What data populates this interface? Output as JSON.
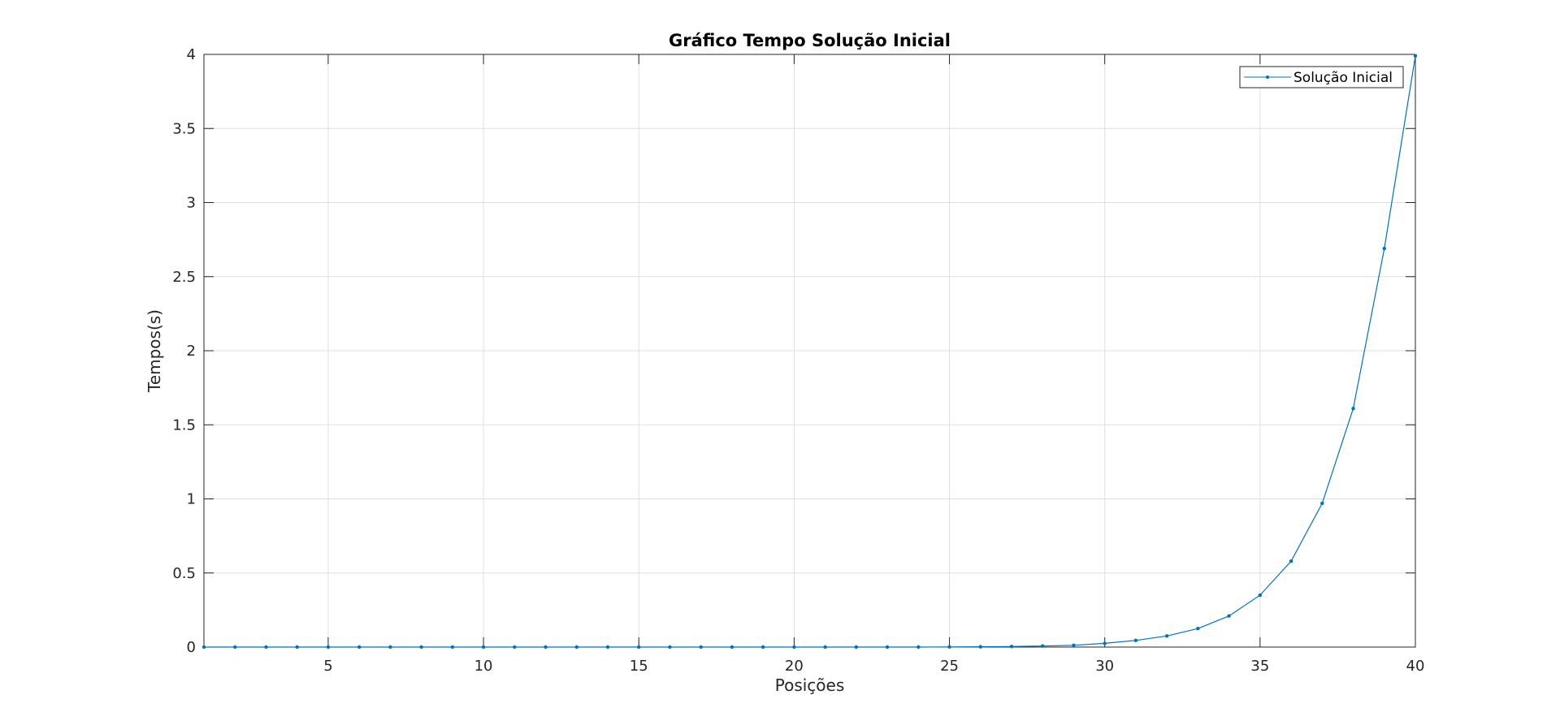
{
  "chart_data": {
    "type": "line",
    "title": "Gráfico Tempo Solução Inicial",
    "xlabel": "Posições",
    "ylabel": "Tempos(s)",
    "xlim": [
      1,
      40
    ],
    "ylim": [
      0,
      4
    ],
    "xticks": [
      5,
      10,
      15,
      20,
      25,
      30,
      35,
      40
    ],
    "xtick_labels": [
      "5",
      "10",
      "15",
      "20",
      "25",
      "30",
      "35",
      "40"
    ],
    "yticks": [
      0,
      0.5,
      1,
      1.5,
      2,
      2.5,
      3,
      3.5,
      4
    ],
    "ytick_labels": [
      "0",
      "0.5",
      "1",
      "1.5",
      "2",
      "2.5",
      "3",
      "3.5",
      "4"
    ],
    "grid": true,
    "legend_position": "top-right",
    "series": [
      {
        "name": "Solução Inicial",
        "color": "#0072BD",
        "marker": "point",
        "x": [
          1,
          2,
          3,
          4,
          5,
          6,
          7,
          8,
          9,
          10,
          11,
          12,
          13,
          14,
          15,
          16,
          17,
          18,
          19,
          20,
          21,
          22,
          23,
          24,
          25,
          26,
          27,
          28,
          29,
          30,
          31,
          32,
          33,
          34,
          35,
          36,
          37,
          38,
          39,
          40
        ],
        "y": [
          0,
          0,
          0,
          0,
          0,
          0,
          0,
          0,
          0,
          0,
          0,
          0,
          0,
          0,
          0,
          0,
          0,
          0,
          0,
          0,
          0,
          0,
          0,
          0,
          0.001,
          0.002,
          0.004,
          0.007,
          0.012,
          0.025,
          0.045,
          0.075,
          0.125,
          0.21,
          0.35,
          0.58,
          0.97,
          1.61,
          2.69,
          3.99
        ]
      }
    ]
  }
}
